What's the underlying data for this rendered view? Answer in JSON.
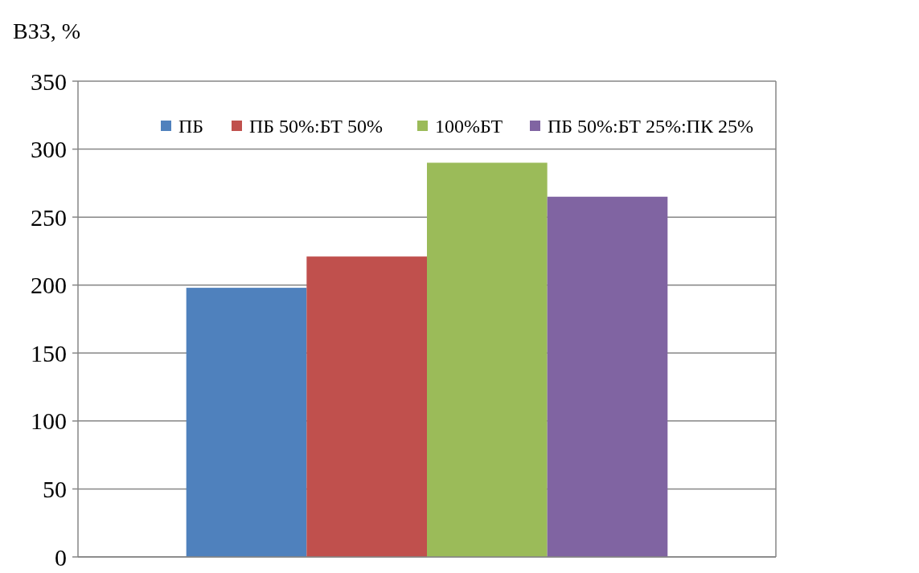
{
  "chart_data": {
    "type": "bar",
    "ylabel": "ВЗЗ, %",
    "categories": [
      null
    ],
    "series": [
      {
        "name": "ПБ",
        "color": "#4f81bd",
        "values": [
          198
        ]
      },
      {
        "name": "ПБ 50%:БТ 50%",
        "color": "#c0504d",
        "values": [
          221
        ]
      },
      {
        "name": "100%БТ",
        "color": "#9bbb59",
        "values": [
          290
        ]
      },
      {
        "name": "ПБ 50%:БТ 25%:ПК 25%",
        "color": "#8064a2",
        "values": [
          265
        ]
      }
    ],
    "ylim": [
      0,
      350
    ],
    "yticks": [
      0,
      50,
      100,
      150,
      200,
      250,
      300,
      350
    ],
    "grid": "y",
    "legend": "top right"
  }
}
